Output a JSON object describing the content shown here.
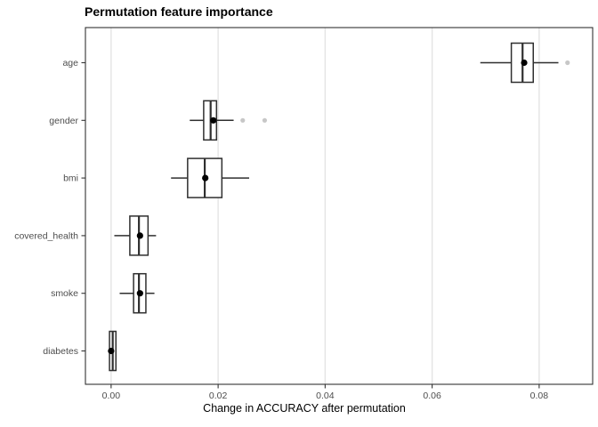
{
  "title": "Permutation feature importance",
  "chart_data": {
    "type": "boxplot",
    "orientation": "horizontal",
    "title": "Permutation feature importance",
    "xlabel": "Change in ACCURACY after permutation",
    "ylabel": "",
    "xlim": [
      -0.0048,
      0.09
    ],
    "xticks": [
      0,
      0.02,
      0.04,
      0.06,
      0.08
    ],
    "xtick_labels": [
      "0.00",
      "0.02",
      "0.04",
      "0.06",
      "0.08"
    ],
    "grid": "vertical-major-only",
    "legend": "none",
    "categories_top_to_bottom": [
      "age",
      "gender",
      "bmi",
      "covered_health",
      "smoke",
      "diabetes"
    ],
    "series": [
      {
        "label": "age",
        "whisker_low": 0.069,
        "q1": 0.0748,
        "median": 0.0769,
        "mean": 0.0772,
        "q3": 0.0789,
        "whisker_high": 0.0836,
        "outliers": [
          0.0853
        ]
      },
      {
        "label": "gender",
        "whisker_low": 0.0147,
        "q1": 0.0173,
        "median": 0.0186,
        "mean": 0.0191,
        "q3": 0.0197,
        "whisker_high": 0.0229,
        "outliers": [
          0.0246,
          0.0287
        ]
      },
      {
        "label": "bmi",
        "whisker_low": 0.0112,
        "q1": 0.0143,
        "median": 0.0175,
        "mean": 0.0176,
        "q3": 0.0207,
        "whisker_high": 0.0258,
        "outliers": []
      },
      {
        "label": "covered_health",
        "whisker_low": 0.0006,
        "q1": 0.0035,
        "median": 0.0052,
        "mean": 0.0054,
        "q3": 0.0069,
        "whisker_high": 0.0084,
        "outliers": []
      },
      {
        "label": "smoke",
        "whisker_low": 0.0016,
        "q1": 0.0042,
        "median": 0.0052,
        "mean": 0.0054,
        "q3": 0.0065,
        "whisker_high": 0.0081,
        "outliers": []
      },
      {
        "label": "diabetes",
        "whisker_low": -0.0004,
        "q1": -0.0003,
        "median": 0.0003,
        "mean": 0.0,
        "q3": 0.0009,
        "whisker_high": 0.001,
        "outliers": []
      }
    ],
    "styles": {
      "background": "#ffffff",
      "panel_background": "#ffffff",
      "panel_border": "#333333",
      "grid_color": "#e4e4e4",
      "box_stroke": "#2f2f2f",
      "box_fill": "#ffffff",
      "median_color": "#2f2f2f",
      "mean_color": "#000000",
      "outlier_color": "#bdbdbd",
      "axis_text_color": "#4d4d4d",
      "tick_color": "#333333"
    }
  }
}
